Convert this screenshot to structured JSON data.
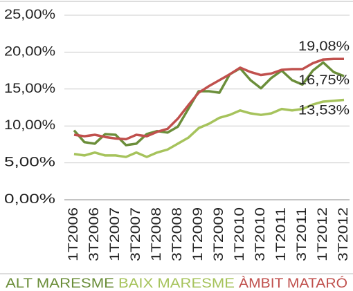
{
  "chart_data": {
    "type": "line",
    "categories": [
      "1T2006",
      null,
      "3T2006",
      null,
      "1T2007",
      null,
      "3T2007",
      null,
      "1T2008",
      null,
      "3T2008",
      null,
      "1T2009",
      null,
      "3T2009",
      null,
      "1T2010",
      null,
      "3T2010",
      null,
      "1T2011",
      null,
      "3T2011",
      null,
      "1T2012",
      null,
      "3T2012"
    ],
    "series": [
      {
        "name": "ALT MARESME",
        "color": "#6b8e3a",
        "values": [
          9.4,
          7.8,
          7.6,
          8.9,
          8.8,
          7.4,
          7.6,
          8.9,
          9.3,
          9.1,
          9.9,
          12.3,
          14.7,
          14.7,
          14.5,
          17.0,
          17.8,
          16.2,
          15.1,
          16.5,
          17.5,
          16.2,
          15.6,
          17.5,
          18.6,
          17.3,
          16.75
        ],
        "value_labels": [
          null,
          null,
          null,
          null,
          null,
          null,
          null,
          null,
          null,
          null,
          null,
          null,
          null,
          null,
          null,
          null,
          null,
          null,
          null,
          null,
          null,
          null,
          null,
          null,
          null,
          null,
          "16,75%"
        ]
      },
      {
        "name": "BAIX MARESME",
        "color": "#a6c35c",
        "values": [
          6.2,
          6.0,
          6.4,
          6.0,
          6.0,
          5.8,
          6.4,
          5.8,
          6.4,
          6.8,
          7.6,
          8.4,
          9.7,
          10.3,
          11.1,
          11.5,
          12.1,
          11.7,
          11.5,
          11.7,
          12.3,
          12.1,
          12.3,
          12.9,
          13.3,
          13.4,
          13.53
        ],
        "value_labels": [
          null,
          null,
          null,
          null,
          null,
          null,
          null,
          null,
          null,
          null,
          null,
          null,
          null,
          null,
          null,
          null,
          null,
          null,
          null,
          null,
          null,
          null,
          null,
          null,
          null,
          null,
          "13,53%"
        ]
      },
      {
        "name": "ÀMBIT MATARÓ",
        "color": "#c0504d",
        "values": [
          8.8,
          8.6,
          8.8,
          8.5,
          8.3,
          8.2,
          8.8,
          8.6,
          9.2,
          9.6,
          11.0,
          12.8,
          14.5,
          15.4,
          16.2,
          17.0,
          17.9,
          17.3,
          16.9,
          17.1,
          17.6,
          17.7,
          17.7,
          18.5,
          19.0,
          19.08,
          19.08
        ],
        "value_labels": [
          null,
          null,
          null,
          null,
          null,
          null,
          null,
          null,
          null,
          null,
          null,
          null,
          null,
          null,
          null,
          null,
          null,
          null,
          null,
          null,
          null,
          null,
          null,
          null,
          null,
          null,
          "19,08%"
        ]
      }
    ],
    "ylim": [
      0,
      25
    ],
    "yticks": [
      {
        "value": 0,
        "label": "0,00%"
      },
      {
        "value": 5,
        "label": "5,00%"
      },
      {
        "value": 10,
        "label": "10,00%"
      },
      {
        "value": 15,
        "label": "15,00%"
      },
      {
        "value": 20,
        "label": "20,00%"
      },
      {
        "value": 25,
        "label": "25,00%"
      }
    ],
    "grid": true,
    "legend": "bottom"
  }
}
